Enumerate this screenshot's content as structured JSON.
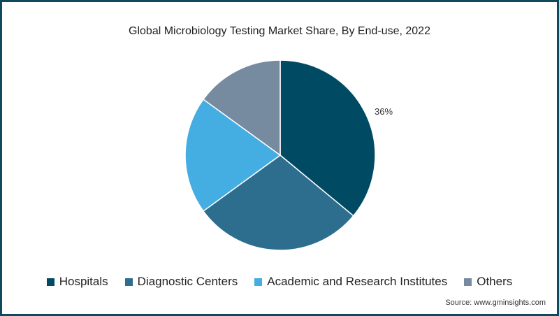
{
  "chart_data": {
    "type": "pie",
    "title": "Global Microbiology Testing Market Share, By End-use, 2022",
    "categories": [
      "Hospitals",
      "Diagnostic Centers",
      "Academic and Research Institutes",
      "Others"
    ],
    "values": [
      36,
      29,
      20,
      15
    ],
    "colors": [
      "#004b63",
      "#2d6e8f",
      "#44ade2",
      "#768aa0"
    ],
    "data_labels": [
      "36%",
      "",
      "",
      ""
    ],
    "legend_position": "bottom",
    "source": "Source: www.gminsights.com"
  },
  "title": "Global Microbiology Testing Market Share, By End-use, 2022",
  "legend": [
    {
      "label": "Hospitals",
      "color": "#004b63"
    },
    {
      "label": "Diagnostic Centers",
      "color": "#2d6e8f"
    },
    {
      "label": "Academic and Research Institutes",
      "color": "#44ade2"
    },
    {
      "label": "Others",
      "color": "#768aa0"
    }
  ],
  "slice_label": "36%",
  "source": "Source: www.gminsights.com",
  "border_color": "#0d4a5e"
}
